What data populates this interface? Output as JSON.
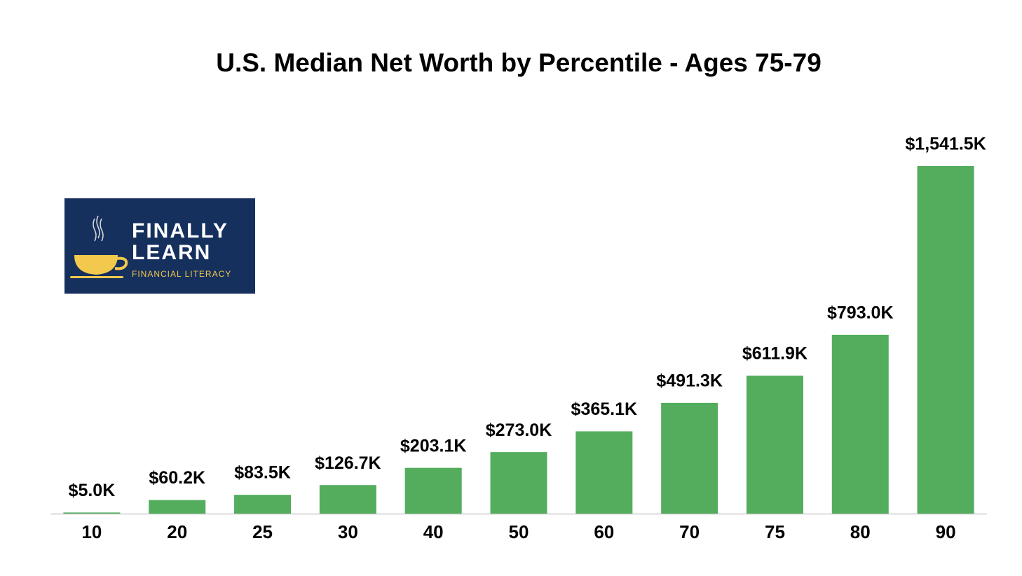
{
  "chart_data": {
    "type": "bar",
    "title": "U.S. Median Net Worth by Percentile - Ages 75-79",
    "categories": [
      "10",
      "20",
      "25",
      "30",
      "40",
      "50",
      "60",
      "70",
      "75",
      "80",
      "90"
    ],
    "values": [
      5.0,
      60.2,
      83.5,
      126.7,
      203.1,
      273.0,
      365.1,
      491.3,
      611.9,
      793.0,
      1541.5
    ],
    "value_labels": [
      "$5.0K",
      "$60.2K",
      "$83.5K",
      "$126.7K",
      "$203.1K",
      "$273.0K",
      "$365.1K",
      "$491.3K",
      "$611.9K",
      "$793.0K",
      "$1,541.5K"
    ],
    "color": "#53ad5c"
  },
  "logo": {
    "line1": "FINALLY",
    "line2": "LEARN",
    "tagline": "FINANCIAL LITERACY"
  }
}
